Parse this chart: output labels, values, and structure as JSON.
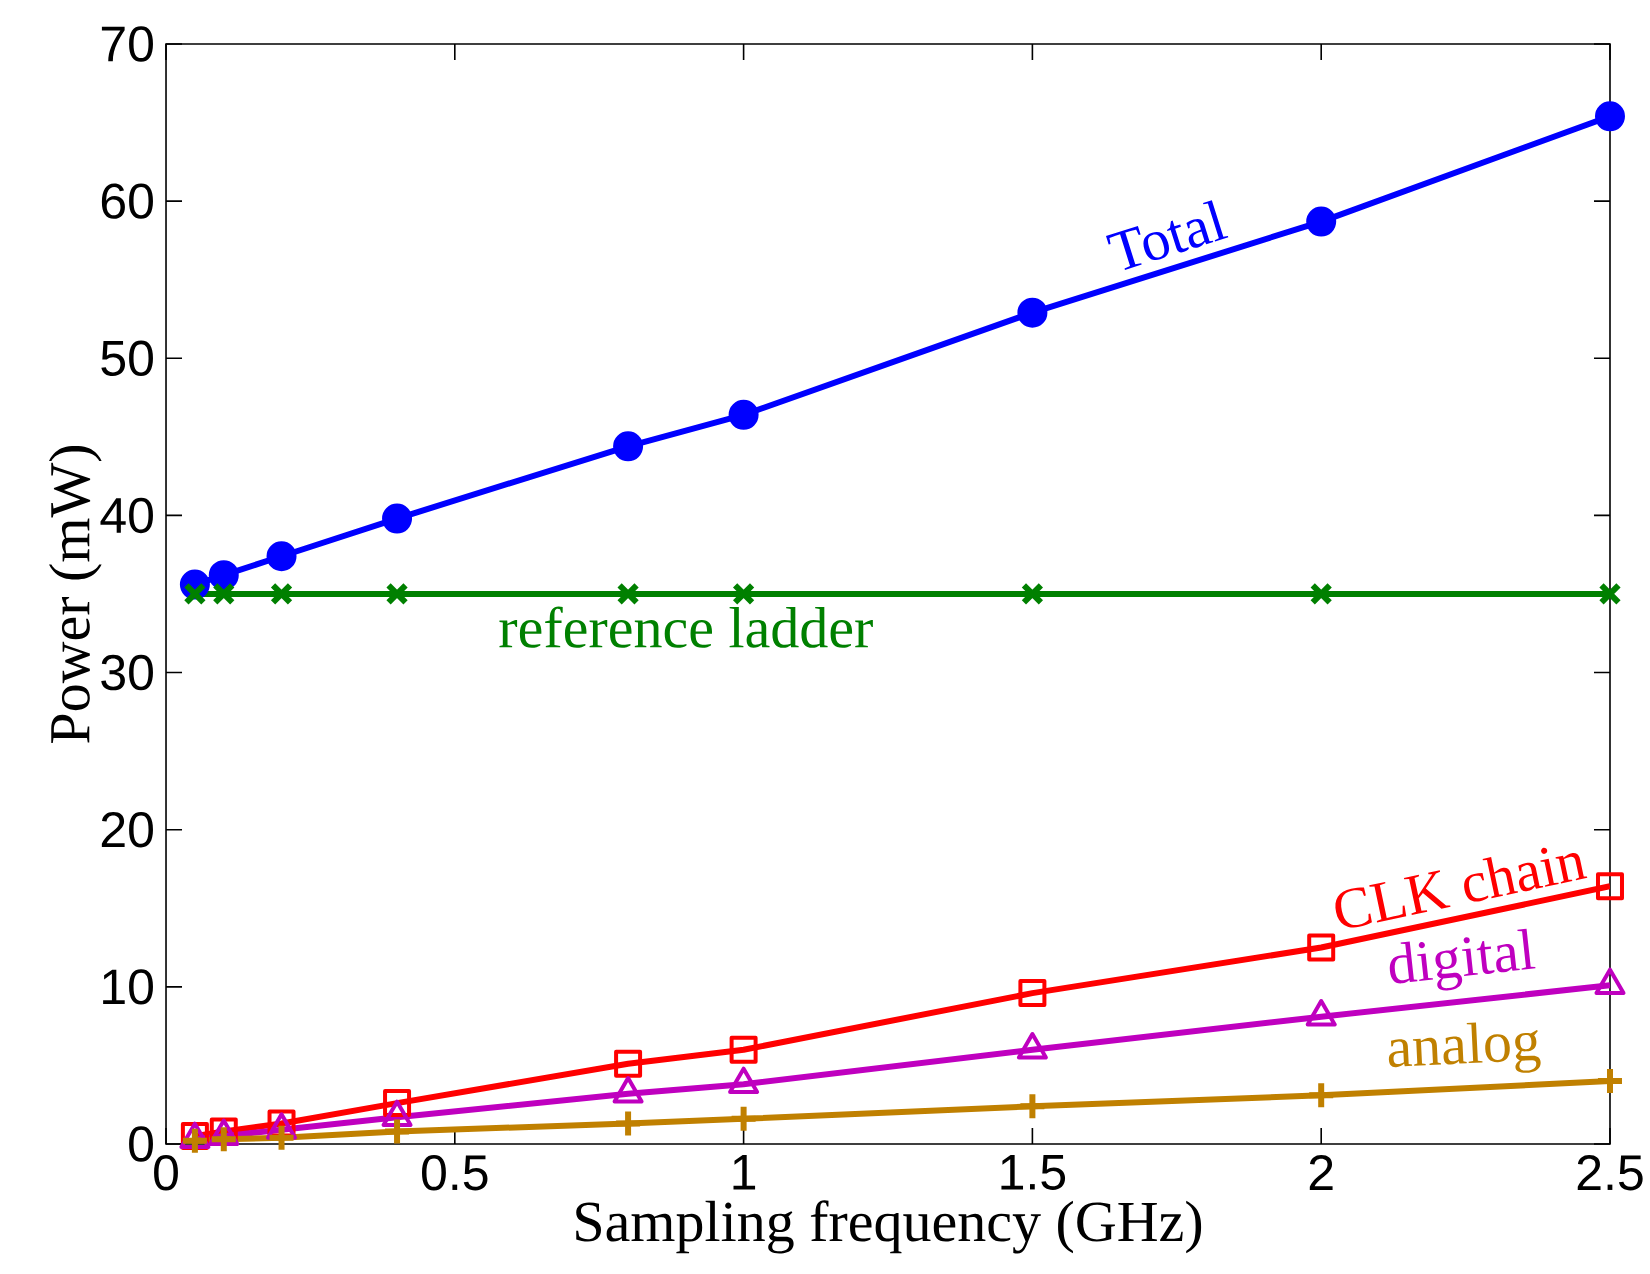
{
  "chart_data": {
    "type": "line",
    "xlabel": "Sampling frequency (GHz)",
    "ylabel": "Power (mW)",
    "xlim": [
      0,
      2.5
    ],
    "ylim": [
      0,
      70
    ],
    "xticks": [
      0,
      0.5,
      1,
      1.5,
      2,
      2.5
    ],
    "yticks": [
      0,
      10,
      20,
      30,
      40,
      50,
      60,
      70
    ],
    "x": [
      0.05,
      0.1,
      0.2,
      0.4,
      0.8,
      1.0,
      1.5,
      2.0,
      2.5
    ],
    "grid": false,
    "legend": false,
    "line_style": "solid",
    "series": [
      {
        "name": "Total",
        "color": "#0000ff",
        "marker": "circle",
        "values": [
          35.6,
          36.2,
          37.4,
          39.8,
          44.4,
          46.4,
          52.9,
          58.7,
          65.4
        ]
      },
      {
        "name": "reference ladder",
        "color": "#008000",
        "marker": "cross",
        "values": [
          35,
          35,
          35,
          35,
          35,
          35,
          35,
          35,
          35
        ]
      },
      {
        "name": "CLK chain",
        "color": "#ff0000",
        "marker": "square",
        "values": [
          0.5,
          0.8,
          1.3,
          2.6,
          5.1,
          6.0,
          9.6,
          12.5,
          16.4
        ]
      },
      {
        "name": "digital",
        "color": "#bf00bf",
        "marker": "triangle",
        "values": [
          0.3,
          0.5,
          0.9,
          1.7,
          3.2,
          3.8,
          6.0,
          8.1,
          10.1
        ]
      },
      {
        "name": "analog",
        "color": "#c08000",
        "marker": "plus",
        "values": [
          0.2,
          0.3,
          0.4,
          0.8,
          1.3,
          1.6,
          2.4,
          3.1,
          4.0
        ]
      }
    ]
  }
}
